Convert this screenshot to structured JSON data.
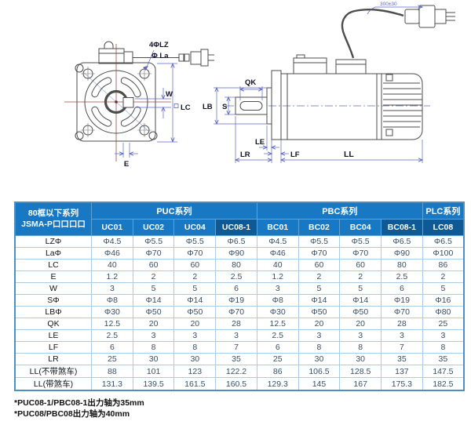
{
  "drawing": {
    "labels": {
      "holes": "4ΦLZ",
      "flange_dia": "Φ La",
      "key_width": "W",
      "frame_size": "LC",
      "key_offset": "E",
      "key_length": "QK",
      "shaft_dia": "S",
      "pilot_dia": "LB",
      "boss_len": "LE",
      "shaft_len": "LR",
      "flange_thick": "LF",
      "body_len": "LL",
      "cable_len": "300±30"
    }
  },
  "table": {
    "corner_header": [
      "80框以下系列",
      "JSMA-P口口口口"
    ],
    "groups": [
      {
        "label": "PUC系列",
        "span": 4
      },
      {
        "label": "PBC系列",
        "span": 4
      },
      {
        "label": "PLC系列",
        "span": 1
      }
    ],
    "models": [
      "UC01",
      "UC02",
      "UC04",
      "UC08-1",
      "BC01",
      "BC02",
      "BC04",
      "BC08-1",
      "LC08"
    ],
    "highlight_models": [
      "UC08-1",
      "BC08-1",
      "LC08"
    ],
    "rows": [
      {
        "label": "LZΦ",
        "values": [
          "Φ4.5",
          "Φ5.5",
          "Φ5.5",
          "Φ6.5",
          "Φ4.5",
          "Φ5.5",
          "Φ5.5",
          "Φ6.5",
          "Φ6.5"
        ]
      },
      {
        "label": "LaΦ",
        "values": [
          "Φ46",
          "Φ70",
          "Φ70",
          "Φ90",
          "Φ46",
          "Φ70",
          "Φ70",
          "Φ90",
          "Φ100"
        ]
      },
      {
        "label": "LC",
        "values": [
          "40",
          "60",
          "60",
          "80",
          "40",
          "60",
          "60",
          "80",
          "86"
        ]
      },
      {
        "label": "E",
        "values": [
          "1.2",
          "2",
          "2",
          "2.5",
          "1.2",
          "2",
          "2",
          "2.5",
          "2"
        ]
      },
      {
        "label": "W",
        "values": [
          "3",
          "5",
          "5",
          "6",
          "3",
          "5",
          "5",
          "6",
          "5"
        ]
      },
      {
        "label": "SΦ",
        "values": [
          "Φ8",
          "Φ14",
          "Φ14",
          "Φ19",
          "Φ8",
          "Φ14",
          "Φ14",
          "Φ19",
          "Φ16"
        ]
      },
      {
        "label": "LBΦ",
        "values": [
          "Φ30",
          "Φ50",
          "Φ50",
          "Φ70",
          "Φ30",
          "Φ50",
          "Φ50",
          "Φ70",
          "Φ80"
        ]
      },
      {
        "label": "QK",
        "values": [
          "12.5",
          "20",
          "20",
          "28",
          "12.5",
          "20",
          "20",
          "28",
          "25"
        ]
      },
      {
        "label": "LE",
        "values": [
          "2.5",
          "3",
          "3",
          "3",
          "2.5",
          "3",
          "3",
          "3",
          "3"
        ]
      },
      {
        "label": "LF",
        "values": [
          "6",
          "8",
          "8",
          "7",
          "6",
          "8",
          "8",
          "7",
          "8"
        ]
      },
      {
        "label": "LR",
        "values": [
          "25",
          "30",
          "30",
          "35",
          "25",
          "30",
          "30",
          "35",
          "35"
        ]
      },
      {
        "label": "LL(不带煞车)",
        "values": [
          "88",
          "101",
          "123",
          "122.2",
          "86",
          "106.5",
          "128.5",
          "137",
          "147.5"
        ]
      },
      {
        "label": "LL(带煞车)",
        "values": [
          "131.3",
          "139.5",
          "161.5",
          "160.5",
          "129.3",
          "145",
          "167",
          "175.3",
          "182.5"
        ]
      }
    ]
  },
  "footnotes": [
    "*PUC08-1/PBC08-1出力轴为35mm",
    "*PUC08/PBC08出力轴为40mm"
  ],
  "colors": {
    "header_bg": "#1878c4",
    "header_highlight_bg": "#0d5a96",
    "table_border": "#4a90c7",
    "grid_line": "#a9cce9",
    "header_text": "#ffffff",
    "cell_text": "#3a4f66",
    "dimension_line": "#5b66c0",
    "outline": "#4d4d4d",
    "centerline": "#a04848"
  }
}
